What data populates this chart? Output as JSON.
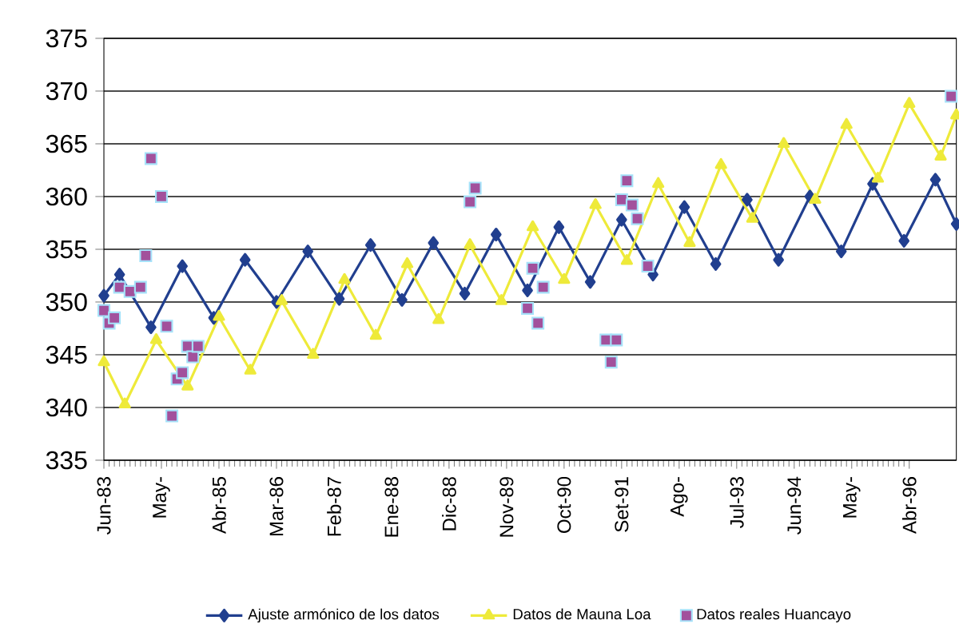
{
  "chart_data": {
    "type": "line",
    "xlim": [
      "1983-06",
      "1997-01"
    ],
    "ylim": [
      335,
      375
    ],
    "xticks": [
      {
        "value": "1983-06",
        "label": "Jun-83"
      },
      {
        "value": "1984-05",
        "label": "May-"
      },
      {
        "value": "1985-04",
        "label": "Abr-85"
      },
      {
        "value": "1986-03",
        "label": "Mar-86"
      },
      {
        "value": "1987-02",
        "label": "Feb-87"
      },
      {
        "value": "1988-01",
        "label": "Ene-88"
      },
      {
        "value": "1988-12",
        "label": "Dic-88"
      },
      {
        "value": "1989-11",
        "label": "Nov-89"
      },
      {
        "value": "1990-10",
        "label": "Oct-90"
      },
      {
        "value": "1991-09",
        "label": "Set-91"
      },
      {
        "value": "1992-08",
        "label": "Ago-"
      },
      {
        "value": "1993-07",
        "label": "Jul-93"
      },
      {
        "value": "1994-06",
        "label": "Jun-94"
      },
      {
        "value": "1995-05",
        "label": "May-"
      },
      {
        "value": "1996-04",
        "label": "Abr-96"
      }
    ],
    "yticks": [
      335,
      340,
      345,
      350,
      355,
      360,
      365,
      370,
      375
    ],
    "grid": "y",
    "legend": "bottom",
    "series": [
      {
        "name": "Ajuste armónico de los datos",
        "marker": "diamond",
        "color": "#213f8f",
        "x": [
          "1983-06",
          "1983-09",
          "1984-03",
          "1984-09",
          "1985-03",
          "1985-09",
          "1986-03",
          "1986-09",
          "1987-03",
          "1987-09",
          "1988-03",
          "1988-09",
          "1989-03",
          "1989-09",
          "1990-03",
          "1990-09",
          "1991-03",
          "1991-09",
          "1992-03",
          "1992-09",
          "1993-03",
          "1993-09",
          "1994-03",
          "1994-09",
          "1995-03",
          "1995-09",
          "1996-03",
          "1996-09",
          "1997-01"
        ],
        "values": [
          350.6,
          352.6,
          347.6,
          353.4,
          348.5,
          354,
          350,
          354.8,
          350.3,
          355.4,
          350.2,
          355.6,
          350.8,
          356.4,
          351.1,
          357.1,
          351.9,
          357.8,
          352.6,
          359,
          353.6,
          359.7,
          354,
          360,
          354.8,
          361.2,
          355.8,
          361.6,
          357.4
        ]
      },
      {
        "name": "Datos de Mauna Loa",
        "marker": "triangle",
        "color": "#eeea3a",
        "x": [
          "1983-06",
          "1983-10",
          "1984-04",
          "1984-10",
          "1985-04",
          "1985-10",
          "1986-04",
          "1986-10",
          "1987-04",
          "1987-10",
          "1988-04",
          "1988-10",
          "1989-04",
          "1989-10",
          "1990-04",
          "1990-10",
          "1991-04",
          "1991-10",
          "1992-04",
          "1992-10",
          "1993-04",
          "1993-10",
          "1994-04",
          "1994-10",
          "1995-04",
          "1995-10",
          "1996-04",
          "1996-10",
          "1997-01"
        ],
        "values": [
          344.3,
          340.3,
          346.4,
          342,
          348.6,
          343.5,
          350.1,
          345,
          352.1,
          346.8,
          353.6,
          348.3,
          355.4,
          350.1,
          357.1,
          352.1,
          359.2,
          353.9,
          361.2,
          355.6,
          363,
          357.9,
          365,
          359.7,
          366.8,
          361.7,
          368.8,
          363.8,
          367.7
        ]
      },
      {
        "name": "Datos reales Huancayo",
        "type": "scatter",
        "marker": "square",
        "color": "#a2519c",
        "x": [
          "1983-06",
          "1983-07",
          "1983-08",
          "1983-09",
          "1983-11",
          "1984-01",
          "1984-02",
          "1984-03",
          "1984-05",
          "1984-06",
          "1984-07",
          "1984-08",
          "1984-09",
          "1984-10",
          "1984-11",
          "1984-12",
          "1989-04",
          "1989-05",
          "1990-03",
          "1990-04",
          "1990-05",
          "1990-06",
          "1991-06",
          "1991-07",
          "1991-08",
          "1991-09",
          "1991-10",
          "1991-11",
          "1991-12",
          "1992-02",
          "1996-12"
        ],
        "values": [
          349.2,
          348,
          348.5,
          351.4,
          351,
          351.4,
          354.4,
          363.6,
          360,
          347.7,
          339.2,
          342.7,
          343.3,
          345.8,
          344.8,
          345.8,
          359.5,
          360.8,
          349.4,
          353.2,
          348,
          351.4,
          346.4,
          344.3,
          346.4,
          359.7,
          361.5,
          359.2,
          357.9,
          353.4,
          369.5
        ]
      }
    ]
  }
}
